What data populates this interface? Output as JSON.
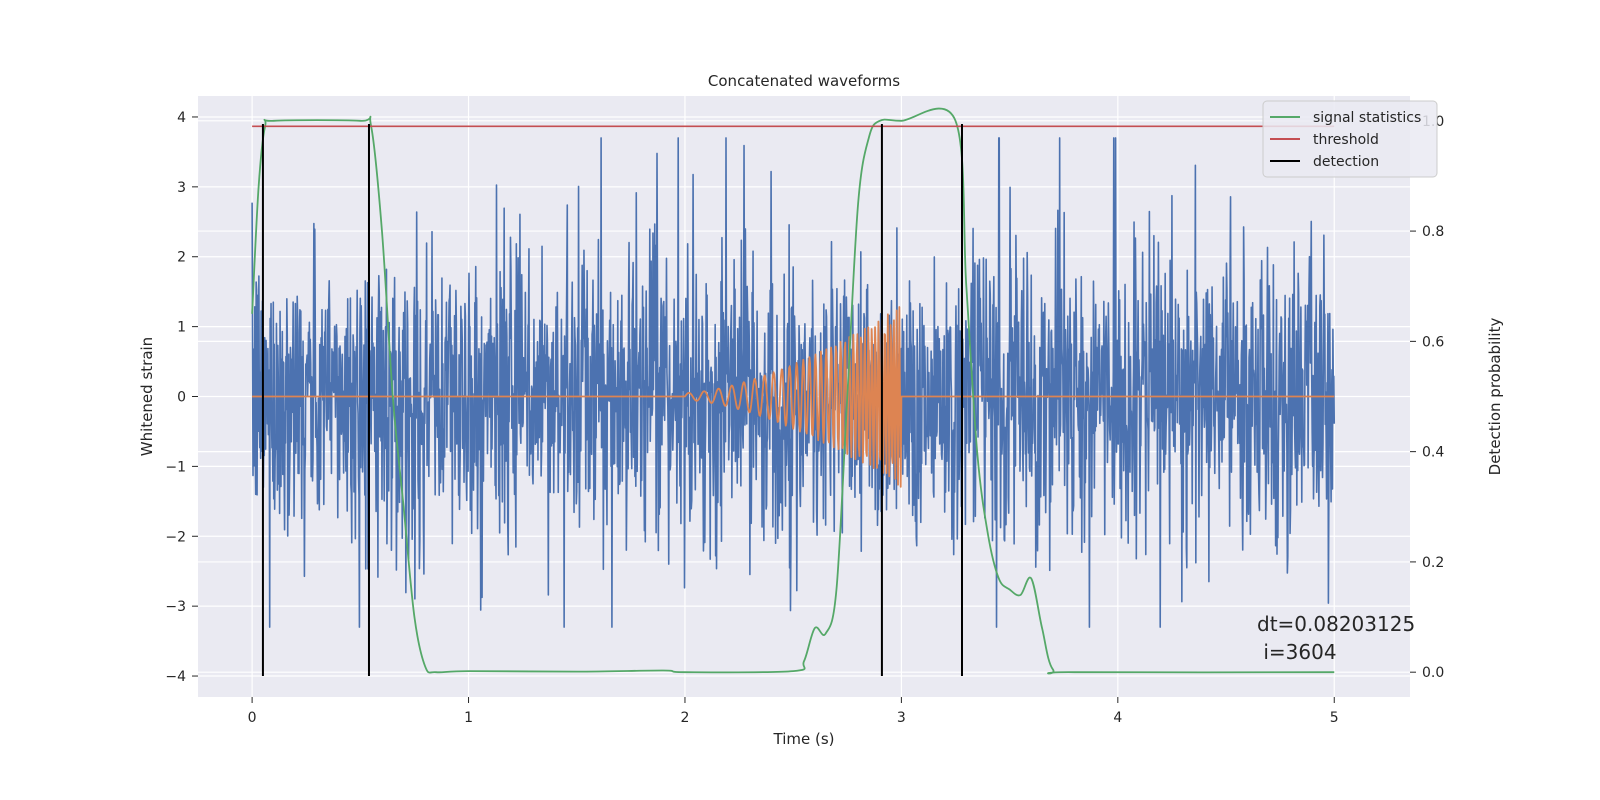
{
  "chart_data": {
    "type": "line",
    "title": "Concatenated waveforms",
    "xlabel": "Time (s)",
    "ylabel": "Whitened strain",
    "y2label": "Detection probability",
    "xlim": [
      -0.25,
      5.35
    ],
    "ylim": [
      -4.3,
      4.3
    ],
    "y2lim": [
      -0.045,
      1.045
    ],
    "x_ticks": [
      0,
      1,
      2,
      3,
      4,
      5
    ],
    "y_ticks": [
      -4,
      -3,
      -2,
      -1,
      0,
      1,
      2,
      3,
      4
    ],
    "y2_ticks": [
      0.0,
      0.2,
      0.4,
      0.6,
      0.8,
      1.0
    ],
    "y2_tick_labels": [
      "0.0",
      "0.2",
      "0.4",
      "0.6",
      "0.8",
      "1.0"
    ],
    "grid": true,
    "legend_position": "top-right",
    "colors": {
      "strain": "#4c72b0",
      "waveform": "#dd8452",
      "signal_statistics": "#55a868",
      "threshold": "#c44e52",
      "detection": "#000000",
      "background": "#eaeaf2"
    },
    "series": [
      {
        "key": "strain",
        "axis": "left",
        "description_range": [
          0,
          5
        ],
        "approx_envelope": [
          -3.3,
          3.7
        ]
      },
      {
        "key": "waveform",
        "axis": "left",
        "chirp_start": 2.0,
        "chirp_end": 3.0,
        "peak_amplitude": 1.3
      },
      {
        "name": "signal statistics",
        "axis": "right",
        "x": [
          0,
          0.03,
          0.06,
          0.1,
          0.5,
          0.55,
          0.6,
          0.65,
          0.7,
          0.75,
          0.8,
          0.85,
          1.0,
          1.5,
          1.9,
          2.0,
          2.5,
          2.55,
          2.6,
          2.65,
          2.7,
          2.75,
          2.8,
          2.85,
          2.9,
          3.0,
          3.25,
          3.3,
          3.35,
          3.4,
          3.45,
          3.5,
          3.55,
          3.6,
          3.65,
          3.7,
          3.8,
          5.0
        ],
        "y": [
          0.65,
          0.88,
          0.99,
          1.0,
          1.0,
          0.99,
          0.8,
          0.5,
          0.3,
          0.1,
          0.01,
          0.0,
          0.002,
          0.001,
          0.003,
          0.0,
          0.002,
          0.02,
          0.08,
          0.07,
          0.15,
          0.5,
          0.85,
          0.97,
          1.0,
          1.0,
          1.0,
          0.7,
          0.4,
          0.25,
          0.17,
          0.15,
          0.14,
          0.17,
          0.08,
          0.005,
          0.0,
          0.0
        ]
      },
      {
        "name": "threshold",
        "axis": "right",
        "x": [
          0,
          5
        ],
        "y": [
          0.99,
          0.99
        ]
      },
      {
        "name": "detection",
        "axis": "left",
        "x": [
          0.05,
          0.54,
          2.91,
          3.28
        ],
        "y_range": [
          -4,
          3.9
        ]
      }
    ],
    "annotation": {
      "line1": "dt=0.08203125",
      "line2": " i=3604"
    }
  }
}
